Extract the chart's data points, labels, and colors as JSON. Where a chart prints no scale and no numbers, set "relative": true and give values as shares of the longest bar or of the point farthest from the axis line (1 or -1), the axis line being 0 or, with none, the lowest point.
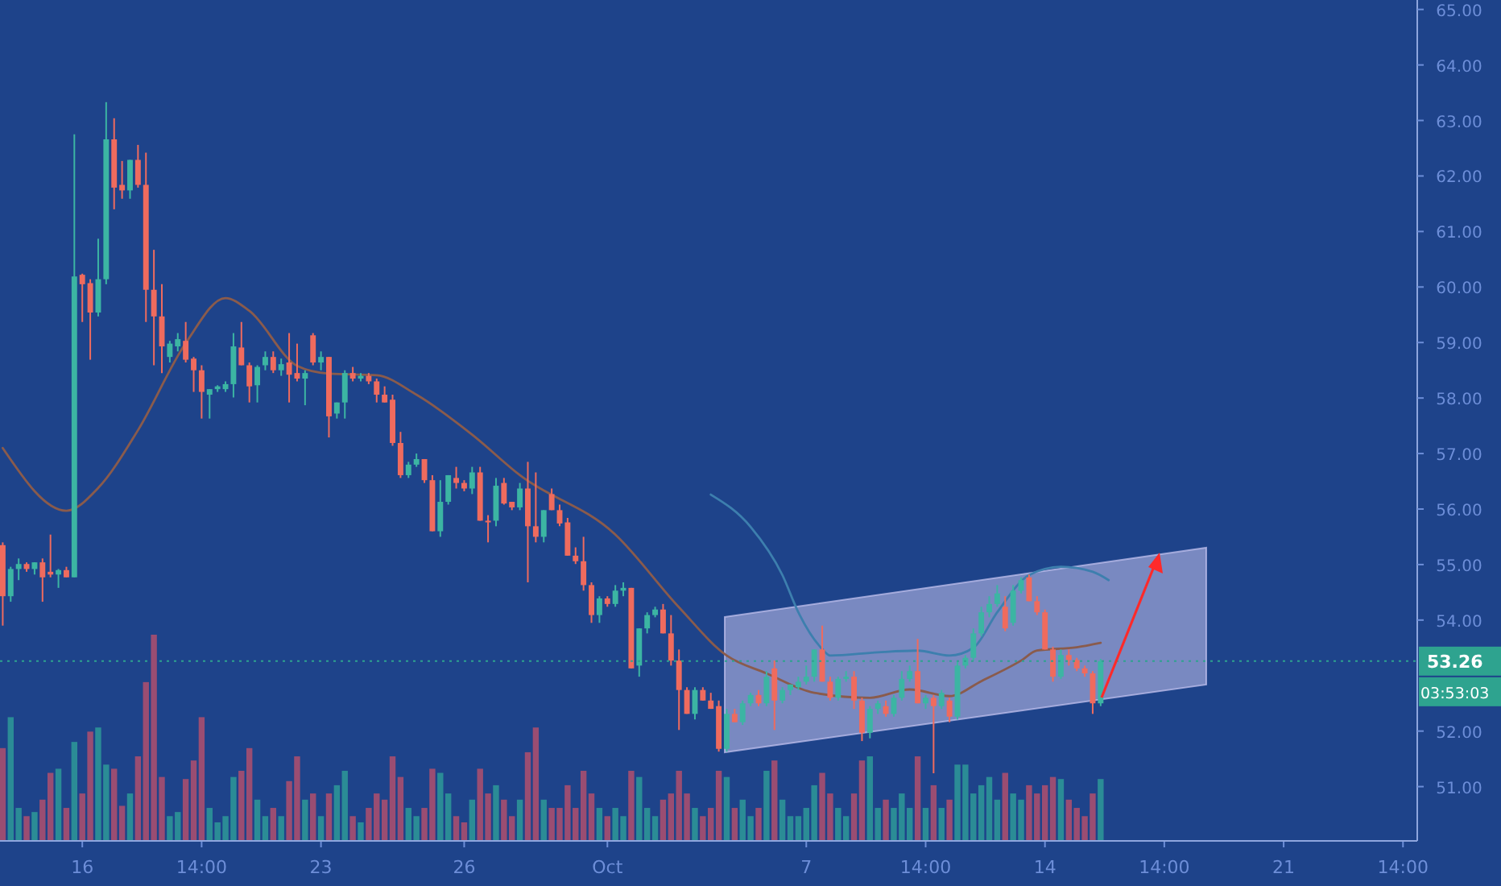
{
  "chart_data": [
    {
      "type": "candlestick",
      "categories": [
        null,
        null,
        null,
        null,
        null,
        null,
        null,
        null,
        null,
        null,
        "16",
        null,
        null,
        null,
        null,
        null,
        null,
        null,
        null,
        null,
        null,
        null,
        null,
        null,
        null,
        "14:00",
        null,
        null,
        null,
        null,
        null,
        null,
        null,
        null,
        null,
        null,
        null,
        null,
        null,
        null,
        "23",
        null,
        null,
        null,
        null,
        null,
        null,
        null,
        null,
        null,
        null,
        null,
        null,
        null,
        null,
        null,
        null,
        null,
        "26",
        null,
        null,
        null,
        null,
        null,
        null,
        null,
        null,
        null,
        null,
        null,
        null,
        null,
        null,
        null,
        null,
        null,
        "Oct",
        null,
        null,
        null,
        null,
        null,
        null,
        null,
        null,
        null,
        null,
        null,
        null,
        null,
        null,
        null,
        null,
        null,
        null,
        null,
        null,
        null,
        null,
        null,
        null,
        "7",
        null,
        null,
        null,
        null,
        null,
        null,
        null,
        null,
        null,
        null,
        null,
        null,
        null,
        null,
        "14:00",
        null,
        null,
        null,
        null,
        null,
        null,
        null,
        null,
        null,
        null,
        null,
        null,
        null,
        null,
        "14",
        null,
        null,
        null,
        null,
        null,
        null,
        null,
        null,
        null,
        null,
        null,
        null,
        null,
        null,
        "14:00",
        null,
        null,
        null,
        null,
        null,
        null,
        null,
        null,
        null,
        null,
        null,
        null,
        null,
        null,
        "21",
        null,
        null,
        null,
        null,
        null,
        null,
        null,
        null,
        null,
        null,
        null,
        null,
        null,
        null,
        "14:00"
      ],
      "ohlc": [
        [
          55.35,
          55.4,
          53.9,
          54.43
        ],
        [
          54.43,
          54.96,
          54.33,
          54.92
        ],
        [
          54.92,
          55.11,
          54.72,
          55.01
        ],
        [
          55.01,
          55.04,
          54.87,
          54.92
        ],
        [
          54.92,
          55.04,
          54.82,
          55.04
        ],
        [
          55.04,
          55.11,
          54.33,
          54.77
        ],
        [
          54.87,
          55.54,
          54.77,
          54.82
        ],
        [
          54.82,
          54.92,
          54.58,
          54.9
        ],
        [
          54.9,
          54.96,
          54.77,
          54.77
        ],
        [
          54.77,
          62.75,
          54.77,
          60.19
        ],
        [
          60.22,
          60.24,
          59.37,
          60.05
        ],
        [
          60.07,
          60.14,
          58.69,
          59.54
        ],
        [
          59.54,
          60.87,
          59.47,
          60.14
        ],
        [
          60.14,
          63.33,
          60.05,
          62.66
        ],
        [
          62.66,
          63.04,
          61.4,
          61.79
        ],
        [
          61.84,
          62.27,
          61.59,
          61.74
        ],
        [
          61.74,
          62.29,
          61.59,
          62.29
        ],
        [
          62.29,
          62.56,
          61.79,
          61.84
        ],
        [
          61.84,
          62.42,
          59.37,
          59.95
        ],
        [
          59.95,
          60.67,
          58.59,
          59.47
        ],
        [
          59.47,
          60.05,
          58.45,
          58.93
        ],
        [
          58.74,
          59.03,
          58.64,
          58.98
        ],
        [
          58.93,
          59.17,
          58.84,
          59.06
        ],
        [
          59.03,
          59.37,
          58.64,
          58.69
        ],
        [
          58.71,
          58.74,
          58.11,
          58.5
        ],
        [
          58.5,
          58.59,
          57.63,
          58.11
        ],
        [
          58.06,
          58.16,
          57.63,
          58.16
        ],
        [
          58.16,
          58.23,
          58.11,
          58.21
        ],
        [
          58.16,
          58.3,
          58.11,
          58.25
        ],
        [
          58.25,
          59.17,
          58.01,
          58.93
        ],
        [
          58.91,
          59.37,
          58.59,
          58.59
        ],
        [
          58.59,
          58.64,
          57.92,
          58.21
        ],
        [
          58.23,
          58.59,
          57.92,
          58.56
        ],
        [
          58.59,
          58.84,
          58.5,
          58.74
        ],
        [
          58.74,
          58.84,
          58.45,
          58.5
        ],
        [
          58.5,
          58.71,
          58.4,
          58.61
        ],
        [
          58.64,
          59.17,
          57.92,
          58.42
        ],
        [
          58.45,
          58.98,
          58.3,
          58.35
        ],
        [
          58.35,
          58.5,
          57.87,
          58.45
        ],
        [
          59.13,
          59.17,
          58.59,
          58.64
        ],
        [
          58.64,
          58.84,
          58.5,
          58.74
        ],
        [
          58.74,
          58.74,
          57.29,
          57.67
        ],
        [
          57.72,
          57.92,
          57.63,
          57.92
        ],
        [
          57.92,
          58.5,
          57.63,
          58.45
        ],
        [
          58.45,
          58.56,
          58.3,
          58.35
        ],
        [
          58.35,
          58.45,
          58.3,
          58.4
        ],
        [
          58.4,
          58.45,
          58.25,
          58.3
        ],
        [
          58.3,
          58.35,
          57.92,
          58.06
        ],
        [
          58.06,
          58.21,
          57.92,
          57.92
        ],
        [
          57.97,
          58.06,
          57.14,
          57.19
        ],
        [
          57.19,
          57.39,
          56.56,
          56.61
        ],
        [
          56.61,
          56.85,
          56.56,
          56.8
        ],
        [
          56.8,
          57.0,
          56.76,
          56.9
        ],
        [
          56.9,
          56.9,
          56.47,
          56.52
        ],
        [
          56.52,
          56.61,
          55.6,
          55.6
        ],
        [
          55.6,
          56.52,
          55.5,
          56.13
        ],
        [
          56.13,
          56.61,
          56.08,
          56.61
        ],
        [
          56.56,
          56.76,
          56.37,
          56.47
        ],
        [
          56.47,
          56.52,
          56.32,
          56.37
        ],
        [
          56.37,
          56.76,
          56.27,
          56.66
        ],
        [
          56.66,
          56.76,
          55.79,
          55.79
        ],
        [
          55.79,
          55.89,
          55.4,
          55.76
        ],
        [
          55.79,
          56.56,
          55.69,
          56.42
        ],
        [
          56.47,
          56.56,
          56.08,
          56.1
        ],
        [
          56.13,
          56.13,
          55.98,
          56.03
        ],
        [
          56.03,
          56.47,
          55.98,
          56.37
        ],
        [
          56.37,
          56.85,
          54.68,
          55.69
        ],
        [
          55.69,
          56.66,
          55.4,
          55.5
        ],
        [
          55.5,
          55.98,
          55.4,
          55.98
        ],
        [
          56.27,
          56.37,
          55.98,
          55.98
        ],
        [
          55.98,
          56.08,
          55.69,
          55.74
        ],
        [
          55.76,
          55.84,
          55.16,
          55.16
        ],
        [
          55.16,
          55.31,
          55.01,
          55.06
        ],
        [
          55.06,
          55.5,
          54.53,
          54.63
        ],
        [
          54.63,
          54.68,
          53.95,
          54.09
        ],
        [
          54.09,
          54.43,
          53.95,
          54.39
        ],
        [
          54.39,
          54.43,
          54.24,
          54.29
        ],
        [
          54.29,
          54.63,
          54.24,
          54.53
        ],
        [
          54.53,
          54.68,
          54.43,
          54.58
        ],
        [
          54.58,
          54.58,
          53.13,
          53.13
        ],
        [
          53.18,
          53.85,
          52.98,
          53.85
        ],
        [
          53.85,
          54.14,
          53.76,
          54.09
        ],
        [
          54.09,
          54.24,
          54.05,
          54.19
        ],
        [
          54.19,
          54.29,
          53.76,
          53.76
        ],
        [
          53.76,
          54.09,
          53.18,
          53.27
        ],
        [
          53.27,
          53.47,
          52.02,
          52.74
        ],
        [
          52.74,
          52.79,
          52.31,
          52.31
        ],
        [
          52.31,
          52.79,
          52.21,
          52.74
        ],
        [
          52.74,
          52.79,
          52.55,
          52.55
        ],
        [
          52.55,
          52.69,
          52.4,
          52.4
        ],
        [
          52.45,
          52.55,
          51.63,
          51.68
        ],
        [
          51.68,
          52.4,
          51.63,
          52.31
        ],
        [
          52.31,
          52.4,
          52.16,
          52.16
        ],
        [
          52.16,
          52.55,
          52.11,
          52.5
        ],
        [
          52.5,
          52.69,
          52.45,
          52.65
        ],
        [
          52.65,
          52.74,
          52.45,
          52.5
        ],
        [
          52.5,
          53.08,
          52.45,
          52.98
        ],
        [
          53.13,
          53.27,
          52.02,
          52.55
        ],
        [
          52.55,
          52.79,
          52.5,
          52.74
        ],
        [
          52.74,
          52.84,
          52.65,
          52.84
        ],
        [
          52.79,
          52.98,
          52.74,
          52.89
        ],
        [
          52.89,
          53.18,
          52.84,
          52.98
        ],
        [
          52.98,
          53.47,
          52.89,
          53.47
        ],
        [
          53.47,
          53.9,
          52.89,
          52.89
        ],
        [
          52.89,
          52.98,
          52.55,
          52.6
        ],
        [
          52.6,
          52.98,
          52.55,
          52.94
        ],
        [
          52.94,
          53.08,
          52.89,
          52.98
        ],
        [
          52.98,
          53.08,
          52.4,
          52.55
        ],
        [
          52.55,
          52.6,
          51.82,
          51.97
        ],
        [
          51.97,
          52.45,
          51.87,
          52.4
        ],
        [
          52.4,
          52.55,
          52.31,
          52.5
        ],
        [
          52.45,
          52.55,
          52.26,
          52.31
        ],
        [
          52.31,
          52.65,
          52.26,
          52.6
        ],
        [
          52.6,
          53.08,
          52.55,
          52.94
        ],
        [
          52.94,
          53.18,
          52.89,
          53.08
        ],
        [
          53.08,
          53.66,
          52.5,
          52.5
        ],
        [
          52.5,
          52.65,
          52.4,
          52.6
        ],
        [
          52.6,
          52.65,
          51.24,
          52.45
        ],
        [
          52.45,
          52.74,
          52.4,
          52.69
        ],
        [
          52.55,
          52.6,
          52.16,
          52.26
        ],
        [
          52.26,
          53.27,
          52.21,
          53.18
        ],
        [
          53.18,
          53.37,
          53.13,
          53.32
        ],
        [
          53.32,
          53.85,
          53.27,
          53.76
        ],
        [
          53.76,
          54.24,
          53.71,
          54.14
        ],
        [
          54.14,
          54.43,
          54.05,
          54.29
        ],
        [
          54.29,
          54.63,
          54.24,
          54.48
        ],
        [
          54.24,
          54.43,
          53.8,
          53.85
        ],
        [
          53.95,
          54.63,
          53.9,
          54.53
        ],
        [
          54.53,
          54.77,
          54.48,
          54.72
        ],
        [
          54.77,
          54.82,
          54.34,
          54.34
        ],
        [
          54.34,
          54.43,
          54.09,
          54.14
        ],
        [
          54.14,
          54.19,
          53.47,
          53.47
        ],
        [
          53.47,
          53.52,
          52.89,
          52.98
        ],
        [
          52.98,
          53.47,
          52.94,
          53.37
        ],
        [
          53.37,
          53.47,
          53.18,
          53.28
        ],
        [
          53.28,
          53.32,
          53.08,
          53.13
        ],
        [
          53.13,
          53.18,
          52.98,
          53.04
        ],
        [
          53.04,
          53.08,
          52.31,
          52.5
        ],
        [
          52.5,
          53.3,
          52.45,
          53.26
        ],
        null,
        null,
        null,
        null,
        null,
        null,
        null,
        null,
        null,
        null,
        null,
        null,
        null,
        null,
        null,
        null,
        null,
        null,
        null,
        null,
        null,
        null,
        null,
        null,
        null,
        null,
        null,
        null,
        null,
        null,
        null,
        null,
        null,
        null,
        null,
        null,
        null,
        null
      ],
      "colors": [
        "#ef6b5e",
        "#3cb5a3",
        "#3cb5a3",
        "#ef6b5e",
        "#3cb5a3",
        "#ef6b5e",
        "#ef6b5e",
        "#3cb5a3",
        "#ef6b5e",
        "#3cb5a3",
        "#ef6b5e",
        "#ef6b5e",
        "#3cb5a3",
        "#3cb5a3",
        "#ef6b5e",
        "#ef6b5e",
        "#3cb5a3",
        "#ef6b5e",
        "#ef6b5e",
        "#ef6b5e",
        "#ef6b5e",
        "#3cb5a3",
        "#3cb5a3",
        "#ef6b5e",
        "#ef6b5e",
        "#ef6b5e",
        "#3cb5a3",
        "#3cb5a3",
        "#3cb5a3",
        "#3cb5a3",
        "#ef6b5e",
        "#ef6b5e",
        "#3cb5a3",
        "#3cb5a3",
        "#ef6b5e",
        "#3cb5a3",
        "#ef6b5e",
        "#ef6b5e",
        "#3cb5a3",
        "#ef6b5e",
        "#3cb5a3",
        "#ef6b5e",
        "#3cb5a3",
        "#3cb5a3",
        "#ef6b5e",
        "#3cb5a3",
        "#ef6b5e",
        "#ef6b5e",
        "#ef6b5e",
        "#ef6b5e",
        "#ef6b5e",
        "#3cb5a3",
        "#3cb5a3",
        "#ef6b5e",
        "#ef6b5e",
        "#3cb5a3",
        "#3cb5a3",
        "#ef6b5e",
        "#ef6b5e",
        "#3cb5a3",
        "#ef6b5e",
        "#ef6b5e",
        "#3cb5a3",
        "#ef6b5e",
        "#ef6b5e",
        "#3cb5a3",
        "#ef6b5e",
        "#ef6b5e",
        "#3cb5a3",
        "#ef6b5e",
        "#ef6b5e",
        "#ef6b5e",
        "#ef6b5e",
        "#ef6b5e",
        "#ef6b5e",
        "#3cb5a3",
        "#ef6b5e",
        "#3cb5a3",
        "#3cb5a3",
        "#ef6b5e",
        "#3cb5a3",
        "#3cb5a3",
        "#3cb5a3",
        "#ef6b5e",
        "#ef6b5e",
        "#ef6b5e",
        "#ef6b5e",
        "#3cb5a3",
        "#ef6b5e",
        "#ef6b5e",
        "#ef6b5e",
        "#3cb5a3",
        "#ef6b5e",
        "#3cb5a3",
        "#3cb5a3",
        "#ef6b5e",
        "#3cb5a3",
        "#ef6b5e",
        "#3cb5a3",
        "#3cb5a3",
        "#3cb5a3",
        "#3cb5a3",
        "#3cb5a3",
        "#ef6b5e",
        "#ef6b5e",
        "#3cb5a3",
        "#3cb5a3",
        "#ef6b5e",
        "#ef6b5e",
        "#3cb5a3",
        "#3cb5a3",
        "#ef6b5e",
        "#3cb5a3",
        "#3cb5a3",
        "#3cb5a3",
        "#ef6b5e",
        "#3cb5a3",
        "#ef6b5e",
        "#3cb5a3",
        "#ef6b5e",
        "#3cb5a3",
        "#3cb5a3",
        "#3cb5a3",
        "#3cb5a3",
        "#3cb5a3",
        "#3cb5a3",
        "#ef6b5e",
        "#3cb5a3",
        "#3cb5a3",
        "#ef6b5e",
        "#ef6b5e",
        "#ef6b5e",
        "#ef6b5e",
        "#3cb5a3",
        "#ef6b5e",
        "#ef6b5e",
        "#ef6b5e",
        "#ef6b5e",
        "#3cb5a3",
        null,
        null,
        null,
        null,
        null,
        null,
        null,
        null,
        null,
        null,
        null,
        null,
        null,
        null,
        null,
        null,
        null,
        null,
        null,
        null,
        null,
        null,
        null,
        null,
        null,
        null,
        null,
        null,
        null,
        null,
        null,
        null,
        null,
        null,
        null,
        null,
        null,
        null
      ],
      "series": [
        {
          "type": "line",
          "color": "#8a5b4c",
          "values": [
            57.1,
            null,
            null,
            null,
            null,
            null,
            null,
            null,
            55.97,
            null,
            null,
            null,
            56.38,
            null,
            null,
            null,
            null,
            57.42,
            null,
            null,
            null,
            null,
            null,
            58.99,
            null,
            null,
            null,
            null,
            59.8,
            null,
            null,
            59.57,
            null,
            null,
            null,
            null,
            null,
            58.58,
            null,
            null,
            null,
            58.44,
            null,
            null,
            null,
            null,
            null,
            58.41,
            null,
            null,
            null,
            null,
            58.06,
            null,
            null,
            null,
            null,
            null,
            null,
            57.34,
            null,
            null,
            null,
            null,
            null,
            56.61,
            null,
            null,
            null,
            null,
            null,
            null,
            null,
            null,
            null,
            null,
            null,
            55.54,
            null,
            null,
            null,
            null,
            null,
            null,
            null,
            54.23,
            null,
            null,
            null,
            null,
            null,
            53.36,
            null,
            null,
            null,
            null,
            53.04,
            null,
            null,
            null,
            null,
            null,
            52.69,
            null,
            null,
            null,
            null,
            null,
            null,
            52.6,
            null,
            null,
            null,
            null,
            52.75,
            null,
            null,
            null,
            null,
            52.63,
            null,
            null,
            null,
            52.9,
            null,
            null,
            null,
            null,
            53.27,
            null,
            53.45,
            null,
            null,
            null,
            null,
            53.51,
            null,
            null,
            53.59,
            null,
            null,
            null,
            null,
            null,
            null,
            null,
            null,
            null,
            null,
            null,
            null,
            null,
            null,
            null,
            null,
            null,
            null,
            null,
            null,
            null,
            null,
            null,
            null,
            null,
            null,
            null,
            null,
            null,
            null,
            null,
            null,
            null,
            null,
            null,
            null,
            null,
            null
          ]
        },
        {
          "type": "line",
          "color": "#3d7fae",
          "values": [
            null,
            null,
            null,
            null,
            null,
            null,
            null,
            null,
            null,
            null,
            null,
            null,
            null,
            null,
            null,
            null,
            null,
            null,
            null,
            null,
            null,
            null,
            null,
            null,
            null,
            null,
            null,
            null,
            null,
            null,
            null,
            null,
            null,
            null,
            null,
            null,
            null,
            null,
            null,
            null,
            null,
            null,
            null,
            null,
            null,
            null,
            null,
            null,
            null,
            null,
            null,
            null,
            null,
            null,
            null,
            null,
            null,
            null,
            null,
            null,
            null,
            null,
            null,
            null,
            null,
            null,
            null,
            null,
            null,
            null,
            null,
            null,
            null,
            null,
            null,
            null,
            null,
            null,
            null,
            null,
            null,
            null,
            null,
            null,
            null,
            null,
            null,
            null,
            null,
            56.26,
            null,
            null,
            null,
            null,
            55.68,
            null,
            null,
            null,
            54.81,
            null,
            54.14,
            null,
            null,
            53.48,
            53.36,
            null,
            null,
            null,
            null,
            null,
            53.42,
            null,
            null,
            null,
            null,
            53.45,
            null,
            null,
            null,
            53.36,
            null,
            null,
            53.5,
            null,
            null,
            54.14,
            null,
            null,
            null,
            54.81,
            null,
            null,
            null,
            54.96,
            null,
            null,
            null,
            54.87,
            null,
            54.72,
            null,
            null,
            null,
            null,
            null,
            null,
            null,
            null,
            null,
            null,
            null,
            null,
            null,
            null,
            null,
            null,
            null,
            null,
            null,
            null,
            null,
            null,
            null,
            null,
            null,
            null,
            null,
            null,
            null,
            null,
            null,
            null,
            null,
            null,
            null,
            null,
            null
          ]
        }
      ],
      "ylim": [
        50.08,
        65.17
      ],
      "yticks": [
        {
          "value": 51,
          "label": "51.00"
        },
        {
          "value": 52,
          "label": "52.00"
        },
        {
          "value": 54,
          "label": "54.00"
        },
        {
          "value": 55,
          "label": "55.00"
        },
        {
          "value": 56,
          "label": "56.00"
        },
        {
          "value": 57,
          "label": "57.00"
        },
        {
          "value": 58,
          "label": "58.00"
        },
        {
          "value": 59,
          "label": "59.00"
        },
        {
          "value": 60,
          "label": "60.00"
        },
        {
          "value": 61,
          "label": "61.00"
        },
        {
          "value": 62,
          "label": "62.00"
        },
        {
          "value": 63,
          "label": "63.00"
        },
        {
          "value": 64,
          "label": "64.00"
        },
        {
          "value": 65,
          "label": "65.00"
        }
      ],
      "ref_lines": [
        {
          "axis": "y",
          "value": 53.26,
          "label": "53.26",
          "color": "#2ea38f",
          "line_style": "dotted"
        }
      ],
      "annotations": [
        "03:53:03"
      ]
    },
    {
      "type": "bar",
      "relative": true,
      "categories": [
        null,
        null,
        null,
        null,
        null,
        null,
        null,
        null,
        null,
        null,
        null,
        null,
        null,
        null,
        null,
        null,
        null,
        null,
        null,
        null,
        null,
        null,
        null,
        null,
        null,
        null,
        null,
        null,
        null,
        null,
        null,
        null,
        null,
        null,
        null,
        null,
        null,
        null,
        null,
        null,
        null,
        null,
        null,
        null,
        null,
        null,
        null,
        null,
        null,
        null,
        null,
        null,
        null,
        null,
        null,
        null,
        null,
        null,
        null,
        null,
        null,
        null,
        null,
        null,
        null,
        null,
        null,
        null,
        null,
        null,
        null,
        null,
        null,
        null,
        null,
        null,
        null,
        null,
        null,
        null,
        null,
        null,
        null,
        null,
        null,
        null,
        null,
        null,
        null,
        null,
        null,
        null,
        null,
        null,
        null,
        null,
        null,
        null,
        null,
        null,
        null,
        null,
        null,
        null,
        null,
        null,
        null,
        null,
        null,
        null,
        null,
        null,
        null,
        null,
        null,
        null,
        null,
        null,
        null,
        null,
        null,
        null,
        null,
        null,
        null,
        null,
        null,
        null,
        null,
        null,
        null,
        null,
        null,
        null,
        null,
        null,
        null,
        null,
        null
      ],
      "values": [
        0.45,
        0.6,
        0.16,
        0.12,
        0.14,
        0.2,
        0.33,
        0.35,
        0.16,
        0.48,
        0.23,
        0.53,
        0.55,
        0.37,
        0.35,
        0.17,
        0.23,
        0.41,
        0.77,
        1,
        0.31,
        0.12,
        0.14,
        0.3,
        0.39,
        0.6,
        0.16,
        0.09,
        0.12,
        0.31,
        0.34,
        0.45,
        0.2,
        0.12,
        0.16,
        0.12,
        0.29,
        0.41,
        0.2,
        0.23,
        0.12,
        0.23,
        0.27,
        0.34,
        0.12,
        0.09,
        0.16,
        0.23,
        0.2,
        0.41,
        0.31,
        0.16,
        0.12,
        0.16,
        0.35,
        0.33,
        0.23,
        0.12,
        0.09,
        0.2,
        0.35,
        0.23,
        0.27,
        0.2,
        0.12,
        0.2,
        0.43,
        0.55,
        0.2,
        0.16,
        0.16,
        0.27,
        0.16,
        0.34,
        0.23,
        0.16,
        0.12,
        0.16,
        0.12,
        0.34,
        0.31,
        0.16,
        0.12,
        0.2,
        0.23,
        0.34,
        0.23,
        0.16,
        0.12,
        0.16,
        0.34,
        0.31,
        0.16,
        0.2,
        0.12,
        0.16,
        0.34,
        0.39,
        0.2,
        0.12,
        0.12,
        0.16,
        0.27,
        0.33,
        0.23,
        0.16,
        0.12,
        0.23,
        0.39,
        0.41,
        0.16,
        0.2,
        0.16,
        0.23,
        0.16,
        0.41,
        0.16,
        0.27,
        0.16,
        0.2,
        0.37,
        0.37,
        0.23,
        0.27,
        0.31,
        0.2,
        0.33,
        0.23,
        0.2,
        0.27,
        0.23,
        0.27,
        0.31,
        0.3,
        0.2,
        0.16,
        0.12,
        0.23,
        0.3
      ],
      "colors": [
        "#9a4d72",
        "#2b8c96",
        "#2b8c96",
        "#9a4d72",
        "#2b8c96",
        "#9a4d72",
        "#9a4d72",
        "#2b8c96",
        "#9a4d72",
        "#2b8c96",
        "#9a4d72",
        "#9a4d72",
        "#2b8c96",
        "#2b8c96",
        "#9a4d72",
        "#9a4d72",
        "#2b8c96",
        "#9a4d72",
        "#9a4d72",
        "#9a4d72",
        "#9a4d72",
        "#2b8c96",
        "#2b8c96",
        "#9a4d72",
        "#9a4d72",
        "#9a4d72",
        "#2b8c96",
        "#2b8c96",
        "#2b8c96",
        "#2b8c96",
        "#9a4d72",
        "#9a4d72",
        "#2b8c96",
        "#2b8c96",
        "#9a4d72",
        "#2b8c96",
        "#9a4d72",
        "#9a4d72",
        "#2b8c96",
        "#9a4d72",
        "#2b8c96",
        "#9a4d72",
        "#2b8c96",
        "#2b8c96",
        "#9a4d72",
        "#2b8c96",
        "#9a4d72",
        "#9a4d72",
        "#9a4d72",
        "#9a4d72",
        "#9a4d72",
        "#2b8c96",
        "#2b8c96",
        "#9a4d72",
        "#9a4d72",
        "#2b8c96",
        "#2b8c96",
        "#9a4d72",
        "#9a4d72",
        "#2b8c96",
        "#9a4d72",
        "#9a4d72",
        "#2b8c96",
        "#9a4d72",
        "#9a4d72",
        "#2b8c96",
        "#9a4d72",
        "#9a4d72",
        "#2b8c96",
        "#9a4d72",
        "#9a4d72",
        "#9a4d72",
        "#9a4d72",
        "#9a4d72",
        "#9a4d72",
        "#2b8c96",
        "#9a4d72",
        "#2b8c96",
        "#2b8c96",
        "#9a4d72",
        "#2b8c96",
        "#2b8c96",
        "#2b8c96",
        "#9a4d72",
        "#9a4d72",
        "#9a4d72",
        "#9a4d72",
        "#2b8c96",
        "#9a4d72",
        "#9a4d72",
        "#9a4d72",
        "#2b8c96",
        "#9a4d72",
        "#2b8c96",
        "#2b8c96",
        "#9a4d72",
        "#2b8c96",
        "#9a4d72",
        "#2b8c96",
        "#2b8c96",
        "#2b8c96",
        "#2b8c96",
        "#2b8c96",
        "#9a4d72",
        "#9a4d72",
        "#2b8c96",
        "#2b8c96",
        "#9a4d72",
        "#9a4d72",
        "#2b8c96",
        "#2b8c96",
        "#9a4d72",
        "#2b8c96",
        "#2b8c96",
        "#2b8c96",
        "#9a4d72",
        "#2b8c96",
        "#9a4d72",
        "#2b8c96",
        "#9a4d72",
        "#2b8c96",
        "#2b8c96",
        "#2b8c96",
        "#2b8c96",
        "#2b8c96",
        "#2b8c96",
        "#9a4d72",
        "#2b8c96",
        "#2b8c96",
        "#9a4d72",
        "#9a4d72",
        "#9a4d72",
        "#9a4d72",
        "#2b8c96",
        "#9a4d72",
        "#9a4d72",
        "#9a4d72",
        "#9a4d72",
        "#2b8c96"
      ]
    }
  ]
}
